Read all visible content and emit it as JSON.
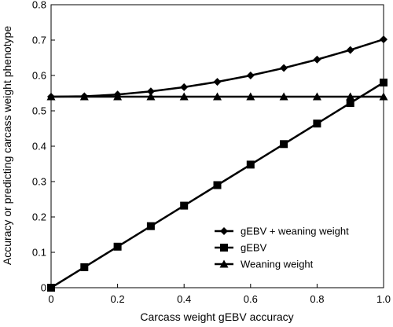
{
  "chart_data": {
    "type": "line",
    "title": "",
    "xlabel": "Carcass weight gEBV accuracy",
    "ylabel": "Accuracy or predicting carcass weight phenotype",
    "xlim": [
      0,
      1
    ],
    "ylim": [
      0,
      0.8
    ],
    "xticks": [
      0,
      0.2,
      0.4,
      0.6,
      0.8,
      1.0
    ],
    "xtick_labels": [
      "0",
      "0.2",
      "0.4",
      "0.6",
      "0.8",
      "1.0"
    ],
    "yticks": [
      0,
      0.1,
      0.2,
      0.3,
      0.4,
      0.5,
      0.6,
      0.7,
      0.8
    ],
    "ytick_labels": [
      "0",
      "0.1",
      "0.2",
      "0.3",
      "0.4",
      "0.5",
      "0.6",
      "0.7",
      "0.8"
    ],
    "grid": false,
    "legend_position": "bottom-right",
    "x": [
      0,
      0.1,
      0.2,
      0.3,
      0.4,
      0.5,
      0.6,
      0.7,
      0.8,
      0.9,
      1.0
    ],
    "series": [
      {
        "name": "gEBV + weaning weight",
        "marker": "diamond",
        "color": "#000000",
        "values": [
          0.54,
          0.541,
          0.546,
          0.555,
          0.567,
          0.582,
          0.6,
          0.621,
          0.645,
          0.672,
          0.702
        ]
      },
      {
        "name": "gEBV",
        "marker": "square",
        "color": "#000000",
        "values": [
          0,
          0.058,
          0.116,
          0.174,
          0.232,
          0.29,
          0.348,
          0.406,
          0.464,
          0.522,
          0.58
        ]
      },
      {
        "name": "Weaning weight",
        "marker": "triangle",
        "color": "#000000",
        "values": [
          0.54,
          0.54,
          0.54,
          0.54,
          0.54,
          0.54,
          0.54,
          0.54,
          0.54,
          0.54,
          0.54
        ]
      }
    ]
  }
}
